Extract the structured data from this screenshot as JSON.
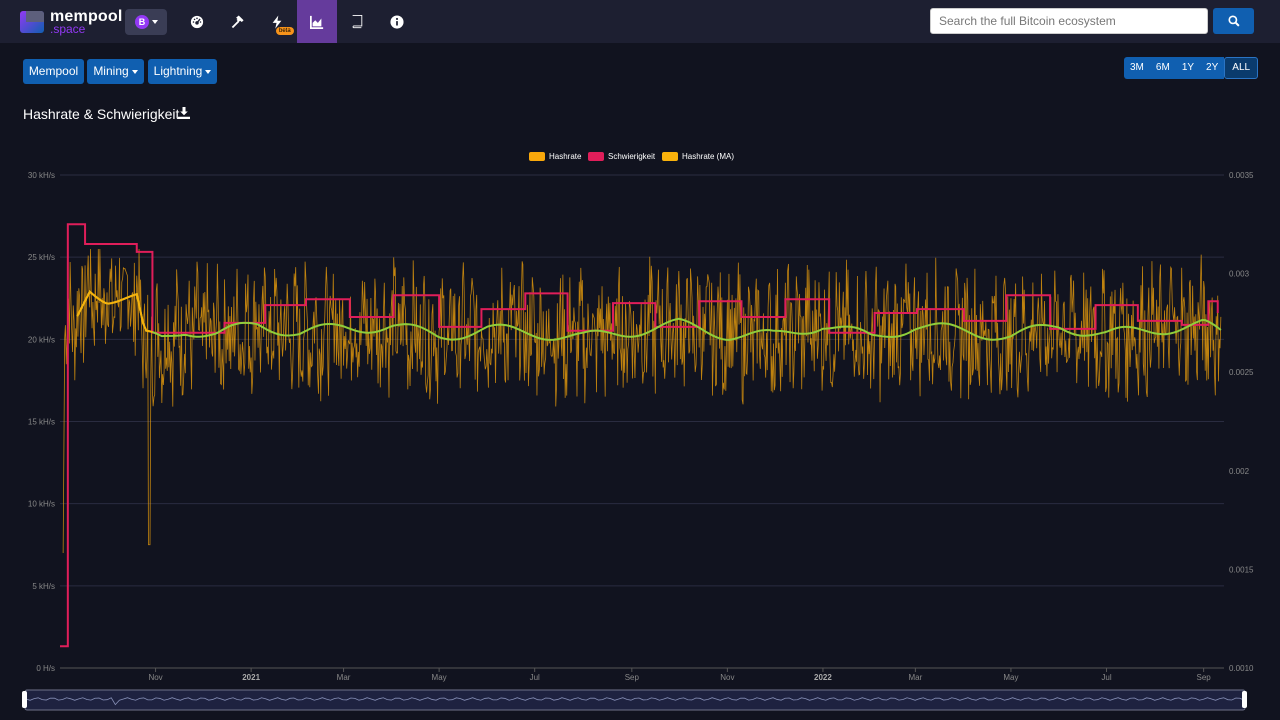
{
  "app": {
    "logo_text_1": "mempool",
    "logo_text_2": ".space",
    "network_badge": "B",
    "beta_label": "beta"
  },
  "nav": {
    "items": [
      {
        "name": "dashboard",
        "icon": "tachometer-icon"
      },
      {
        "name": "mining",
        "icon": "hammer-icon"
      },
      {
        "name": "lightning",
        "icon": "bolt-icon"
      },
      {
        "name": "graphs",
        "icon": "chart-area-icon",
        "active": true
      },
      {
        "name": "docs",
        "icon": "book-icon"
      },
      {
        "name": "about",
        "icon": "info-icon"
      }
    ]
  },
  "search": {
    "placeholder": "Search the full Bitcoin ecosystem"
  },
  "menu": {
    "mempool_label": "Mempool",
    "mining_label": "Mining",
    "lightning_label": "Lightning"
  },
  "range": {
    "options": [
      "3M",
      "6M",
      "1Y",
      "2Y",
      "ALL"
    ],
    "selected": "ALL"
  },
  "title": "Hashrate & Schwierigkeit",
  "colors": {
    "hashrate": "#f9a80b",
    "difficulty": "#e01e5a",
    "hashrate_ma": "#f9b20c",
    "accent_blue": "#105fb0",
    "active_nav": "#653b9c"
  },
  "chart_data": {
    "type": "line",
    "legend": [
      "Hashrate",
      "Schwierigkeit",
      "Hashrate (MA)"
    ],
    "legend_placement": "top-center",
    "y_left_ticks": [
      "0 H/s",
      "5 kH/s",
      "10 kH/s",
      "15 kH/s",
      "20 kH/s",
      "25 kH/s",
      "30 kH/s"
    ],
    "y_left_range": [
      0,
      30
    ],
    "y_left_unit": "kH/s",
    "y_right_ticks": [
      "0.0010",
      "0.0015",
      "0.002",
      "0.0025",
      "0.003",
      "0.0035"
    ],
    "y_right_range": [
      0.001,
      0.0035
    ],
    "x_ticks": [
      {
        "label": "Nov",
        "bold": false
      },
      {
        "label": "2021",
        "bold": true
      },
      {
        "label": "Mar",
        "bold": false
      },
      {
        "label": "May",
        "bold": false
      },
      {
        "label": "Jul",
        "bold": false
      },
      {
        "label": "Sep",
        "bold": false
      },
      {
        "label": "Nov",
        "bold": false
      },
      {
        "label": "2022",
        "bold": true
      },
      {
        "label": "Mar",
        "bold": false
      },
      {
        "label": "May",
        "bold": false
      },
      {
        "label": "Jul",
        "bold": false
      },
      {
        "label": "Sep",
        "bold": false
      }
    ],
    "x_range": [
      "2020-09",
      "2022-09"
    ],
    "grid": true,
    "series": [
      {
        "name": "Schwierigkeit",
        "axis": "right",
        "x": [
          "2020-09-01",
          "2020-09-03",
          "2020-09-06",
          "2020-09-17",
          "2020-10-20",
          "2020-10-30",
          "2020-11-20",
          "2020-12-15",
          "2021-01-10",
          "2021-02-05",
          "2021-03-05",
          "2021-04-02",
          "2021-05-01",
          "2021-05-28",
          "2021-06-25",
          "2021-07-22",
          "2021-08-20",
          "2021-09-16",
          "2021-10-14",
          "2021-11-10",
          "2021-12-08",
          "2022-01-05",
          "2022-02-03",
          "2022-03-02",
          "2022-04-01",
          "2022-04-28",
          "2022-05-26",
          "2022-06-24",
          "2022-07-21",
          "2022-08-18",
          "2022-09-04",
          "2022-09-10"
        ],
        "values": [
          0.00111,
          0.00111,
          0.00325,
          0.00315,
          0.00311,
          0.0027,
          0.0027,
          0.00275,
          0.00284,
          0.00287,
          0.00278,
          0.00289,
          0.00273,
          0.00282,
          0.0029,
          0.00271,
          0.00285,
          0.00273,
          0.00286,
          0.00278,
          0.00287,
          0.0027,
          0.0028,
          0.00282,
          0.00276,
          0.00289,
          0.00272,
          0.00284,
          0.00276,
          0.00274,
          0.00286,
          0.0028
        ]
      },
      {
        "name": "Hashrate (MA)",
        "axis": "left",
        "x": [
          "2020-09-12",
          "2020-09-20",
          "2020-10-01",
          "2020-10-20",
          "2020-10-25",
          "2020-11-05",
          "2020-11-20",
          "2020-12-10",
          "2021-01-05",
          "2021-02-01",
          "2021-03-01",
          "2021-04-01",
          "2021-05-01",
          "2021-06-01",
          "2021-07-01",
          "2021-08-01",
          "2021-09-01",
          "2021-10-01",
          "2021-11-01",
          "2021-12-01",
          "2022-01-01",
          "2022-02-01",
          "2022-03-01",
          "2022-04-01",
          "2022-05-01",
          "2022-06-01",
          "2022-07-01",
          "2022-08-01",
          "2022-09-01",
          "2022-09-12"
        ],
        "values": [
          21.3,
          23.1,
          22.5,
          22.5,
          20.2,
          20.0,
          20.6,
          20.3,
          20.9,
          20.4,
          20.7,
          20.8,
          20.2,
          20.6,
          20.4,
          20.1,
          20.5,
          20.9,
          20.3,
          20.2,
          20.9,
          20.1,
          20.8,
          20.5,
          20.2,
          20.8,
          20.3,
          20.6,
          20.9,
          20.3
        ]
      },
      {
        "name": "Hashrate",
        "axis": "left",
        "value_range": [
          15.5,
          25.5
        ],
        "note": "daily samples fluctuating around the moving average"
      }
    ]
  }
}
